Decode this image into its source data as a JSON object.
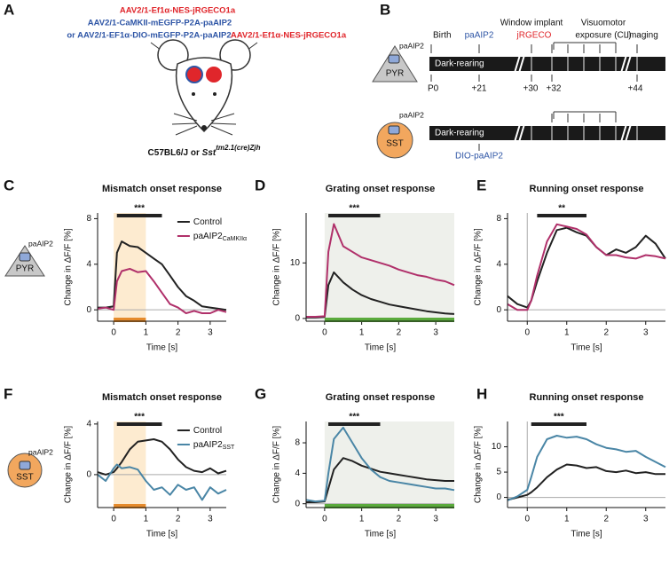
{
  "panel_a": {
    "letter": "A",
    "virus_left": "AAV2/1-Ef1α-NES-jRGECO1a",
    "virus_blue_1": "AAV2/1-CaMKII-mEGFP-P2A-paAIP2",
    "virus_blue_2": "or AAV2/1-EF1α-DIO-mEGFP-P2A-paAIP2",
    "virus_right": "AAV2/1-Ef1α-NES-jRGECO1a",
    "strain_1": "C57BL6/J",
    "strain_or": "or",
    "strain_2": "Sst",
    "strain_2_sup": "tm2.1(cre)Zjh"
  },
  "panel_b": {
    "letter": "B",
    "pyr_label": "PYR",
    "pyr_tag": "paAIP2",
    "sst_label": "SST",
    "sst_tag": "paAIP2",
    "birth": "Birth",
    "paaip2": "paAIP2",
    "window": "Window implant",
    "jrgeco": "jRGECO",
    "visuomotor": "Visuomotor",
    "exposure": "exposure (CL)",
    "imaging": "Imaging",
    "dark_rearing_1": "Dark-rearing",
    "dark_rearing_2": "Dark-rearing",
    "p0": "P0",
    "d21": "+21",
    "d30": "+30",
    "d32": "+32",
    "d44": "+44",
    "dio": "DIO-paAIP2"
  },
  "chart_data": [
    {
      "type": "line",
      "panel": "C",
      "title": "Mismatch onset response",
      "xlabel": "Time [s]",
      "ylabel": "Change in ΔF/F [%]",
      "icon": {
        "shape": "triangle",
        "label": "PYR",
        "tag": "paAIP2"
      },
      "x": [
        -0.5,
        -0.25,
        0,
        0.1,
        0.25,
        0.5,
        0.75,
        1,
        1.25,
        1.5,
        1.75,
        2,
        2.25,
        2.5,
        2.75,
        3,
        3.25,
        3.5
      ],
      "series": [
        {
          "name": "Control",
          "color": "#222222",
          "values": [
            0.2,
            0.2,
            0.3,
            5,
            6,
            5.6,
            5.5,
            5,
            4.5,
            4,
            3,
            2,
            1.2,
            0.8,
            0.3,
            0.2,
            0.1,
            0
          ]
        },
        {
          "name": "paAIP2",
          "subscript": "CaMKIIα",
          "color": "#b0306a",
          "values": [
            0.1,
            0.2,
            0,
            2.5,
            3.4,
            3.6,
            3.3,
            3.4,
            2.5,
            1.5,
            0.5,
            0.2,
            -0.3,
            -0.1,
            -0.3,
            -0.3,
            0,
            -0.2
          ]
        }
      ],
      "xlim": [
        -0.5,
        3.5
      ],
      "ylim": [
        -1,
        8.5
      ],
      "xticks": [
        0,
        1,
        2,
        3
      ],
      "yticks": [
        0,
        4,
        8
      ],
      "stimulus": [
        0,
        1
      ],
      "shade_color": "#fdebd0",
      "stim_color": "#e58a2b",
      "significance": [
        0.1,
        1.5
      ],
      "significance_label": "***",
      "legend": "upper right"
    },
    {
      "type": "line",
      "panel": "D",
      "title": "Grating onset response",
      "xlabel": "Time [s]",
      "ylabel": "Change in ΔF/F [%]",
      "x": [
        -0.5,
        -0.25,
        0,
        0.1,
        0.25,
        0.5,
        0.75,
        1,
        1.25,
        1.5,
        1.75,
        2,
        2.25,
        2.5,
        2.75,
        3,
        3.25,
        3.5
      ],
      "series": [
        {
          "name": "Control",
          "color": "#222222",
          "values": [
            0.2,
            0.2,
            0.3,
            6,
            8.3,
            6.5,
            5.2,
            4.2,
            3.5,
            3,
            2.5,
            2.2,
            1.9,
            1.6,
            1.3,
            1.1,
            0.9,
            0.8
          ]
        },
        {
          "name": "paAIP2",
          "subscript": "CaMKIIα",
          "color": "#b0306a",
          "values": [
            0.3,
            0.3,
            0.4,
            12,
            17,
            13,
            12,
            11,
            10.5,
            10,
            9.5,
            8.8,
            8.3,
            7.8,
            7.5,
            7,
            6.7,
            6
          ]
        }
      ],
      "xlim": [
        -0.5,
        3.5
      ],
      "ylim": [
        -0.5,
        19
      ],
      "xticks": [
        0,
        1,
        2,
        3
      ],
      "yticks": [
        0,
        10
      ],
      "stimulus": [
        0,
        3.5
      ],
      "shade_color": "#eef0eb",
      "stim_color": "#5aaa3c",
      "significance": [
        0.1,
        1.5
      ],
      "significance_label": "***"
    },
    {
      "type": "line",
      "panel": "E",
      "title": "Running onset response",
      "xlabel": "Time [s]",
      "ylabel": "Change in ΔF/F [%]",
      "x": [
        -0.5,
        -0.25,
        0,
        0.1,
        0.25,
        0.5,
        0.75,
        1,
        1.25,
        1.5,
        1.75,
        2,
        2.25,
        2.5,
        2.75,
        3,
        3.25,
        3.5
      ],
      "series": [
        {
          "name": "Control",
          "color": "#222222",
          "values": [
            1.2,
            0.5,
            0.2,
            0.8,
            2.5,
            5,
            7,
            7.2,
            6.8,
            6.5,
            5.5,
            4.8,
            5.3,
            5,
            5.5,
            6.5,
            5.8,
            4.5
          ]
        },
        {
          "name": "paAIP2",
          "subscript": "CaMKIIα",
          "color": "#b0306a",
          "values": [
            0.5,
            0,
            0,
            0.8,
            3,
            6,
            7.5,
            7.3,
            7.1,
            6.6,
            5.5,
            4.8,
            4.8,
            4.6,
            4.5,
            4.8,
            4.7,
            4.5
          ]
        }
      ],
      "xlim": [
        -0.5,
        3.5
      ],
      "ylim": [
        -1,
        8.5
      ],
      "xticks": [
        0,
        1,
        2,
        3
      ],
      "yticks": [
        0,
        4,
        8
      ],
      "significance": [
        0.25,
        1.5
      ],
      "significance_label": "**"
    },
    {
      "type": "line",
      "panel": "F",
      "title": "Mismatch onset response",
      "xlabel": "Time [s]",
      "ylabel": "Change in ΔF/F [%]",
      "icon": {
        "shape": "circle",
        "label": "SST",
        "tag": "paAIP2"
      },
      "x": [
        -0.5,
        -0.25,
        0,
        0.1,
        0.25,
        0.5,
        0.75,
        1,
        1.25,
        1.5,
        1.75,
        2,
        2.25,
        2.5,
        2.75,
        3,
        3.25,
        3.5
      ],
      "series": [
        {
          "name": "Control",
          "color": "#222222",
          "values": [
            0.2,
            0,
            0.2,
            0.5,
            1,
            2,
            2.6,
            2.7,
            2.8,
            2.6,
            2,
            1.2,
            0.6,
            0.3,
            0.2,
            0.5,
            0.1,
            0.3
          ]
        },
        {
          "name": "paAIP2",
          "subscript": "SST",
          "color": "#4a86a6",
          "values": [
            0,
            -0.5,
            0.5,
            0.8,
            0.5,
            0.6,
            0.4,
            -0.5,
            -1.2,
            -1,
            -1.6,
            -0.8,
            -1.2,
            -1,
            -2,
            -1,
            -1.5,
            -1.2
          ]
        }
      ],
      "xlim": [
        -0.5,
        3.5
      ],
      "ylim": [
        -2.6,
        4.2
      ],
      "xticks": [
        0,
        1,
        2,
        3
      ],
      "yticks": [
        0,
        4
      ],
      "stimulus": [
        0,
        1
      ],
      "shade_color": "#fdebd0",
      "stim_color": "#e58a2b",
      "significance": [
        0.1,
        1.5
      ],
      "significance_label": "***",
      "legend": "upper right"
    },
    {
      "type": "line",
      "panel": "G",
      "title": "Grating onset response",
      "xlabel": "Time [s]",
      "ylabel": "Change in ΔF/F [%]",
      "x": [
        -0.5,
        -0.25,
        0,
        0.1,
        0.25,
        0.5,
        0.75,
        1,
        1.25,
        1.5,
        1.75,
        2,
        2.25,
        2.5,
        2.75,
        3,
        3.25,
        3.5
      ],
      "series": [
        {
          "name": "Control",
          "color": "#222222",
          "values": [
            0.2,
            0.2,
            0.3,
            2,
            4.5,
            6,
            5.6,
            5,
            4.6,
            4.2,
            4,
            3.8,
            3.6,
            3.4,
            3.2,
            3.1,
            3,
            3
          ]
        },
        {
          "name": "paAIP2",
          "subscript": "SST",
          "color": "#4a86a6",
          "values": [
            0.5,
            0.3,
            0.4,
            4,
            8.5,
            10,
            8,
            6,
            4.5,
            3.5,
            3,
            2.8,
            2.6,
            2.4,
            2.2,
            2,
            2,
            1.8
          ]
        }
      ],
      "xlim": [
        -0.5,
        3.5
      ],
      "ylim": [
        -0.5,
        10.8
      ],
      "xticks": [
        0,
        1,
        2,
        3
      ],
      "yticks": [
        0,
        4,
        8
      ],
      "stimulus": [
        0,
        3.5
      ],
      "shade_color": "#eef0eb",
      "stim_color": "#5aaa3c",
      "significance": [
        0.1,
        1.5
      ],
      "significance_label": "***"
    },
    {
      "type": "line",
      "panel": "H",
      "title": "Running onset response",
      "xlabel": "Time [s]",
      "ylabel": "Change in ΔF/F [%]",
      "x": [
        -0.5,
        -0.25,
        0,
        0.1,
        0.25,
        0.5,
        0.75,
        1,
        1.25,
        1.5,
        1.75,
        2,
        2.25,
        2.5,
        2.75,
        3,
        3.25,
        3.5
      ],
      "series": [
        {
          "name": "Control",
          "color": "#222222",
          "values": [
            -0.5,
            0,
            0.5,
            1,
            2,
            4,
            5.5,
            6.5,
            6.3,
            5.8,
            6,
            5.2,
            5,
            5.3,
            4.8,
            5,
            4.6,
            4.6
          ]
        },
        {
          "name": "paAIP2",
          "subscript": "SST",
          "color": "#4a86a6",
          "values": [
            -0.6,
            0.2,
            1.5,
            4,
            8,
            11.5,
            12.2,
            11.8,
            12,
            11.5,
            10.5,
            9.8,
            9.5,
            9,
            9.2,
            8,
            7,
            6
          ]
        }
      ],
      "xlim": [
        -0.5,
        3.5
      ],
      "ylim": [
        -2,
        15
      ],
      "xticks": [
        0,
        1,
        2,
        3
      ],
      "yticks": [
        0,
        5,
        10
      ],
      "significance": [
        0.1,
        1.5
      ],
      "significance_label": "***"
    }
  ]
}
